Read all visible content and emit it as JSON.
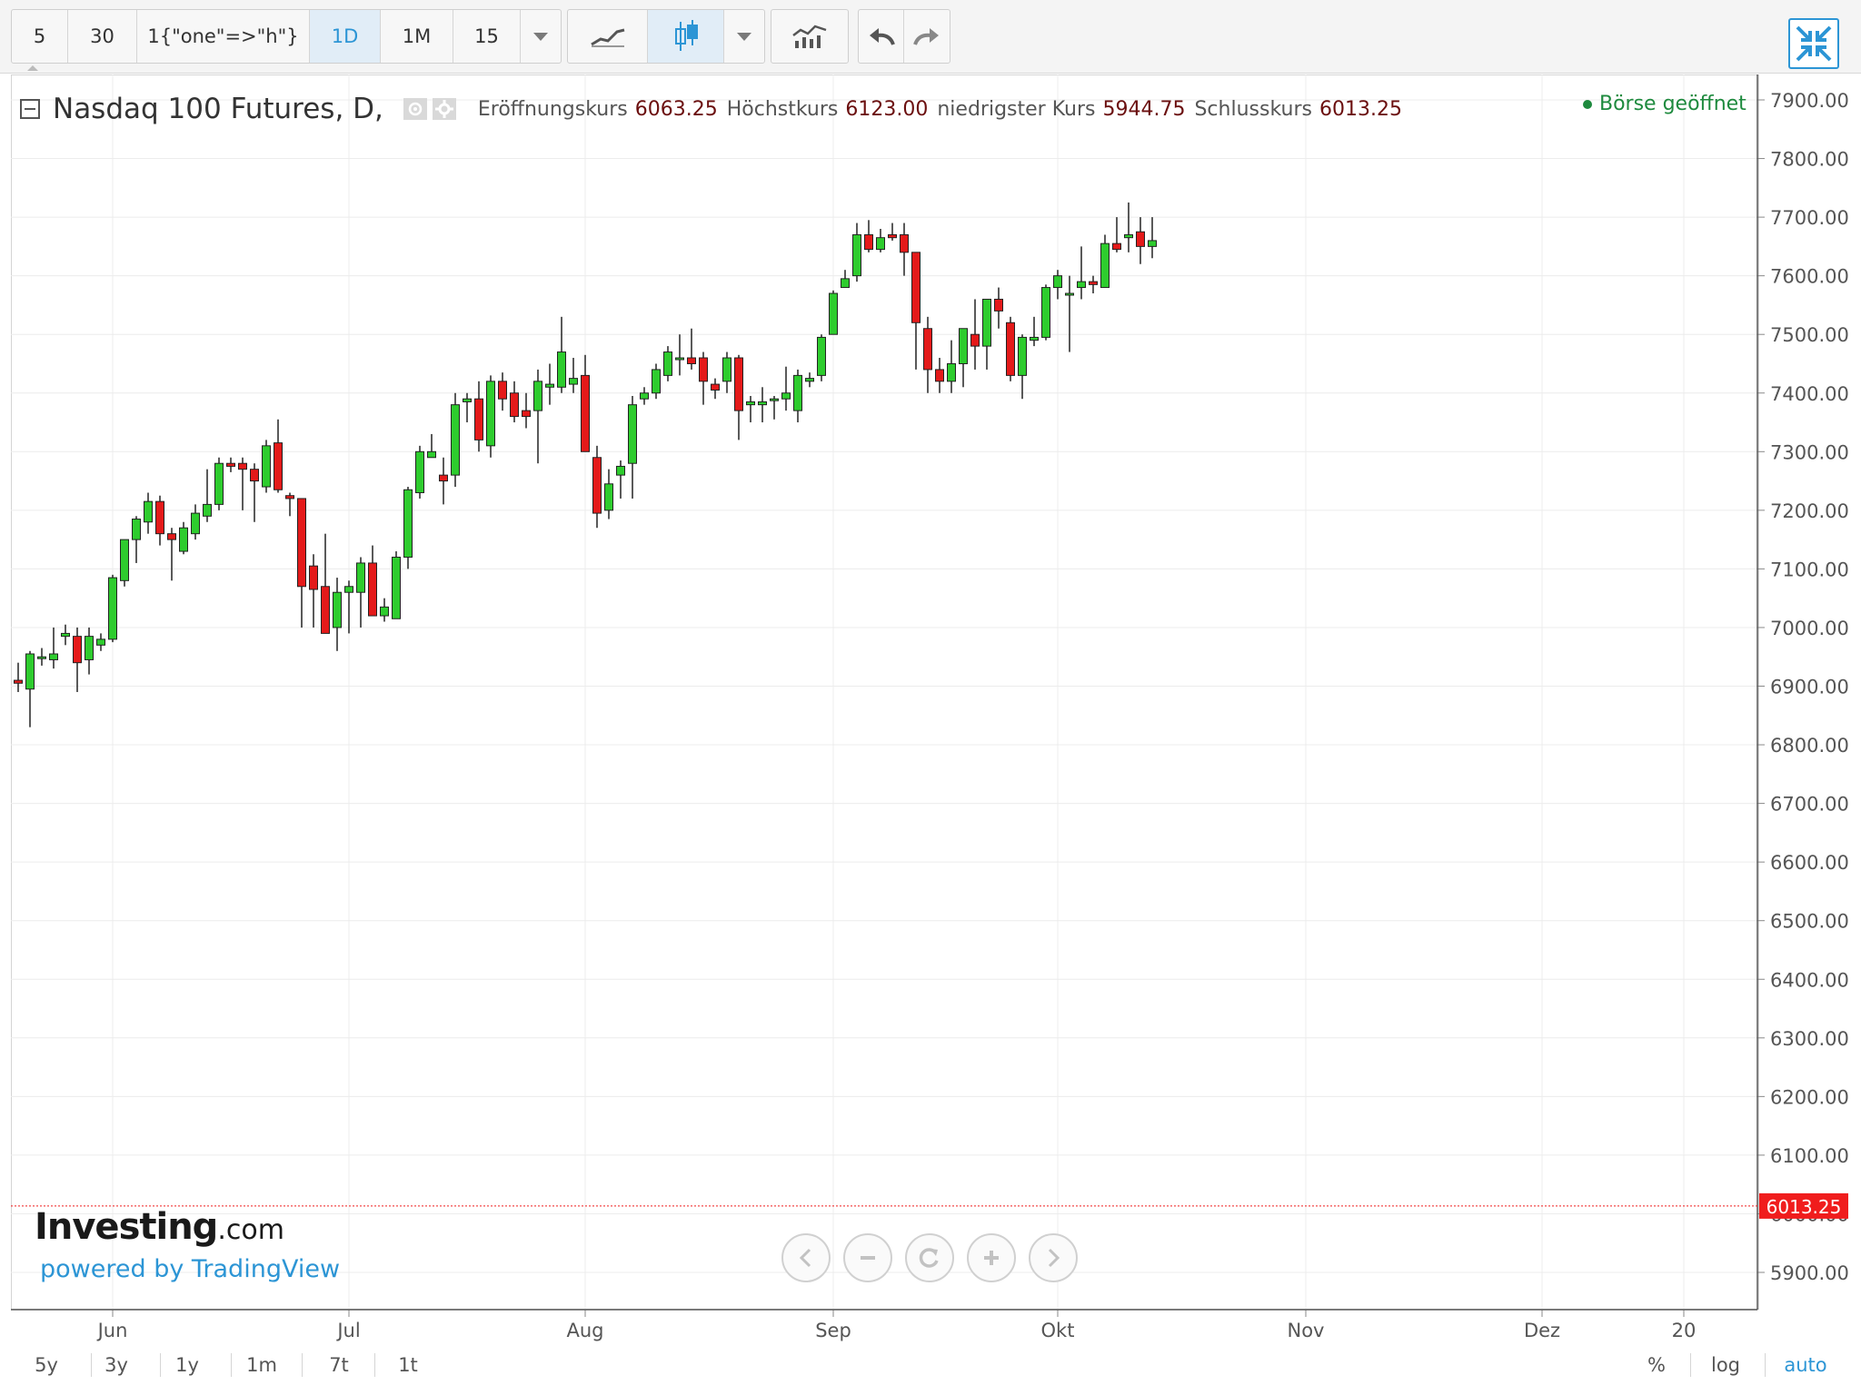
{
  "toolbar": {
    "intervals": [
      "5",
      "30",
      "1{\"one\"=>\"h\"}",
      "1D",
      "1M",
      "15"
    ],
    "active_interval": "1D"
  },
  "header": {
    "title": "Nasdaq 100 Futures, D,",
    "open_label": "Eröffnungskurs",
    "open_value": "6063.25",
    "high_label": "Höchstkurs",
    "high_value": "6123.00",
    "low_label": "niedrigster Kurs",
    "low_value": "5944.75",
    "close_label": "Schlusskurs",
    "close_value": "6013.25",
    "market_status": "Börse geöffnet"
  },
  "branding": {
    "logo_main": "Investing",
    "logo_suffix": ".com",
    "powered_by": "powered by TradingView"
  },
  "bottom_bar": {
    "ranges": [
      "5y",
      "3y",
      "1y",
      "1m",
      "7t",
      "1t"
    ],
    "percent_label": "%",
    "log_label": "log",
    "auto_label": "auto"
  },
  "colors": {
    "up": "#2ecc2e",
    "down": "#e41a1a",
    "accent": "#2c95d5",
    "open_status": "#1e8a3e",
    "price_line": "#f01d1d"
  },
  "chart_data": {
    "type": "candlestick",
    "title": "Nasdaq 100 Futures, D,",
    "ylim": [
      5850,
      7950
    ],
    "y_ticks": [
      5900,
      6000,
      6100,
      6200,
      6300,
      6400,
      6500,
      6600,
      6700,
      6800,
      6900,
      7000,
      7100,
      7200,
      7300,
      7400,
      7500,
      7600,
      7700,
      7800,
      7900
    ],
    "y_tick_labels": [
      "5900.00",
      "6000.00",
      "6100.00",
      "6200.00",
      "6300.00",
      "6400.00",
      "6500.00",
      "6600.00",
      "6700.00",
      "6800.00",
      "6900.00",
      "7000.00",
      "7100.00",
      "7200.00",
      "7300.00",
      "7400.00",
      "7500.00",
      "7600.00",
      "7700.00",
      "7800.00",
      "7900.00"
    ],
    "x_labels": [
      {
        "label": "Jun",
        "index": 8
      },
      {
        "label": "Jul",
        "index": 28
      },
      {
        "label": "Aug",
        "index": 48
      },
      {
        "label": "Sep",
        "index": 69
      },
      {
        "label": "Okt",
        "index": 88
      },
      {
        "label": "Nov",
        "index": 109
      },
      {
        "label": "Dez",
        "index": 129
      },
      {
        "label": "20",
        "index": 141
      }
    ],
    "last_price": 6013.25,
    "last_price_label": "6013.25",
    "grid": true,
    "candles": [
      {
        "o": 6910,
        "h": 6940,
        "l": 6890,
        "c": 6905
      },
      {
        "o": 6895,
        "h": 6960,
        "l": 6830,
        "c": 6955
      },
      {
        "o": 6950,
        "h": 6965,
        "l": 6935,
        "c": 6950
      },
      {
        "o": 6945,
        "h": 7000,
        "l": 6930,
        "c": 6955
      },
      {
        "o": 6985,
        "h": 7005,
        "l": 6970,
        "c": 6990
      },
      {
        "o": 6985,
        "h": 7000,
        "l": 6890,
        "c": 6940
      },
      {
        "o": 6945,
        "h": 7000,
        "l": 6920,
        "c": 6985
      },
      {
        "o": 6970,
        "h": 6990,
        "l": 6960,
        "c": 6980
      },
      {
        "o": 6980,
        "h": 7090,
        "l": 6975,
        "c": 7085
      },
      {
        "o": 7080,
        "h": 7150,
        "l": 7070,
        "c": 7150
      },
      {
        "o": 7150,
        "h": 7190,
        "l": 7110,
        "c": 7185
      },
      {
        "o": 7180,
        "h": 7230,
        "l": 7160,
        "c": 7215
      },
      {
        "o": 7215,
        "h": 7225,
        "l": 7140,
        "c": 7160
      },
      {
        "o": 7160,
        "h": 7170,
        "l": 7080,
        "c": 7150
      },
      {
        "o": 7130,
        "h": 7180,
        "l": 7125,
        "c": 7170
      },
      {
        "o": 7160,
        "h": 7210,
        "l": 7150,
        "c": 7195
      },
      {
        "o": 7190,
        "h": 7270,
        "l": 7180,
        "c": 7210
      },
      {
        "o": 7210,
        "h": 7290,
        "l": 7200,
        "c": 7280
      },
      {
        "o": 7280,
        "h": 7290,
        "l": 7265,
        "c": 7275
      },
      {
        "o": 7280,
        "h": 7290,
        "l": 7200,
        "c": 7270
      },
      {
        "o": 7270,
        "h": 7280,
        "l": 7180,
        "c": 7250
      },
      {
        "o": 7240,
        "h": 7320,
        "l": 7230,
        "c": 7310
      },
      {
        "o": 7315,
        "h": 7355,
        "l": 7230,
        "c": 7235
      },
      {
        "o": 7225,
        "h": 7230,
        "l": 7190,
        "c": 7220
      },
      {
        "o": 7220,
        "h": 7220,
        "l": 7000,
        "c": 7070
      },
      {
        "o": 7105,
        "h": 7125,
        "l": 7000,
        "c": 7065
      },
      {
        "o": 7070,
        "h": 7160,
        "l": 6990,
        "c": 6990
      },
      {
        "o": 7000,
        "h": 7085,
        "l": 6960,
        "c": 7060
      },
      {
        "o": 7060,
        "h": 7080,
        "l": 6990,
        "c": 7070
      },
      {
        "o": 7060,
        "h": 7120,
        "l": 7000,
        "c": 7110
      },
      {
        "o": 7110,
        "h": 7140,
        "l": 7020,
        "c": 7020
      },
      {
        "o": 7020,
        "h": 7050,
        "l": 7010,
        "c": 7035
      },
      {
        "o": 7015,
        "h": 7130,
        "l": 7015,
        "c": 7120
      },
      {
        "o": 7120,
        "h": 7240,
        "l": 7100,
        "c": 7235
      },
      {
        "o": 7230,
        "h": 7310,
        "l": 7220,
        "c": 7300
      },
      {
        "o": 7290,
        "h": 7330,
        "l": 7290,
        "c": 7300
      },
      {
        "o": 7260,
        "h": 7290,
        "l": 7210,
        "c": 7250
      },
      {
        "o": 7260,
        "h": 7400,
        "l": 7240,
        "c": 7380
      },
      {
        "o": 7385,
        "h": 7400,
        "l": 7350,
        "c": 7390
      },
      {
        "o": 7390,
        "h": 7420,
        "l": 7300,
        "c": 7320
      },
      {
        "o": 7310,
        "h": 7430,
        "l": 7290,
        "c": 7420
      },
      {
        "o": 7420,
        "h": 7435,
        "l": 7370,
        "c": 7390
      },
      {
        "o": 7400,
        "h": 7420,
        "l": 7350,
        "c": 7360
      },
      {
        "o": 7370,
        "h": 7400,
        "l": 7340,
        "c": 7360
      },
      {
        "o": 7370,
        "h": 7440,
        "l": 7280,
        "c": 7420
      },
      {
        "o": 7410,
        "h": 7450,
        "l": 7380,
        "c": 7415
      },
      {
        "o": 7410,
        "h": 7530,
        "l": 7400,
        "c": 7470
      },
      {
        "o": 7415,
        "h": 7460,
        "l": 7400,
        "c": 7425
      },
      {
        "o": 7430,
        "h": 7465,
        "l": 7300,
        "c": 7300
      },
      {
        "o": 7290,
        "h": 7310,
        "l": 7170,
        "c": 7195
      },
      {
        "o": 7200,
        "h": 7270,
        "l": 7185,
        "c": 7245
      },
      {
        "o": 7260,
        "h": 7285,
        "l": 7220,
        "c": 7275
      },
      {
        "o": 7280,
        "h": 7395,
        "l": 7220,
        "c": 7380
      },
      {
        "o": 7390,
        "h": 7410,
        "l": 7380,
        "c": 7400
      },
      {
        "o": 7400,
        "h": 7450,
        "l": 7390,
        "c": 7440
      },
      {
        "o": 7430,
        "h": 7480,
        "l": 7420,
        "c": 7470
      },
      {
        "o": 7460,
        "h": 7500,
        "l": 7430,
        "c": 7460
      },
      {
        "o": 7460,
        "h": 7510,
        "l": 7440,
        "c": 7450
      },
      {
        "o": 7460,
        "h": 7470,
        "l": 7380,
        "c": 7420
      },
      {
        "o": 7415,
        "h": 7425,
        "l": 7390,
        "c": 7405
      },
      {
        "o": 7420,
        "h": 7470,
        "l": 7400,
        "c": 7460
      },
      {
        "o": 7460,
        "h": 7465,
        "l": 7320,
        "c": 7370
      },
      {
        "o": 7380,
        "h": 7395,
        "l": 7350,
        "c": 7385
      },
      {
        "o": 7380,
        "h": 7410,
        "l": 7350,
        "c": 7385
      },
      {
        "o": 7390,
        "h": 7395,
        "l": 7355,
        "c": 7390
      },
      {
        "o": 7390,
        "h": 7445,
        "l": 7370,
        "c": 7400
      },
      {
        "o": 7370,
        "h": 7440,
        "l": 7350,
        "c": 7430
      },
      {
        "o": 7420,
        "h": 7435,
        "l": 7410,
        "c": 7425
      },
      {
        "o": 7430,
        "h": 7500,
        "l": 7420,
        "c": 7495
      },
      {
        "o": 7500,
        "h": 7575,
        "l": 7500,
        "c": 7570
      },
      {
        "o": 7580,
        "h": 7610,
        "l": 7580,
        "c": 7595
      },
      {
        "o": 7600,
        "h": 7690,
        "l": 7590,
        "c": 7670
      },
      {
        "o": 7670,
        "h": 7695,
        "l": 7640,
        "c": 7645
      },
      {
        "o": 7645,
        "h": 7680,
        "l": 7640,
        "c": 7665
      },
      {
        "o": 7670,
        "h": 7690,
        "l": 7660,
        "c": 7665
      },
      {
        "o": 7670,
        "h": 7690,
        "l": 7600,
        "c": 7640
      },
      {
        "o": 7640,
        "h": 7640,
        "l": 7440,
        "c": 7520
      },
      {
        "o": 7510,
        "h": 7530,
        "l": 7400,
        "c": 7440
      },
      {
        "o": 7440,
        "h": 7460,
        "l": 7400,
        "c": 7420
      },
      {
        "o": 7420,
        "h": 7490,
        "l": 7400,
        "c": 7450
      },
      {
        "o": 7450,
        "h": 7510,
        "l": 7410,
        "c": 7510
      },
      {
        "o": 7500,
        "h": 7560,
        "l": 7440,
        "c": 7480
      },
      {
        "o": 7480,
        "h": 7560,
        "l": 7440,
        "c": 7560
      },
      {
        "o": 7560,
        "h": 7580,
        "l": 7510,
        "c": 7540
      },
      {
        "o": 7520,
        "h": 7530,
        "l": 7420,
        "c": 7430
      },
      {
        "o": 7430,
        "h": 7500,
        "l": 7390,
        "c": 7495
      },
      {
        "o": 7490,
        "h": 7530,
        "l": 7480,
        "c": 7495
      },
      {
        "o": 7495,
        "h": 7585,
        "l": 7490,
        "c": 7580
      },
      {
        "o": 7580,
        "h": 7610,
        "l": 7560,
        "c": 7600
      },
      {
        "o": 7570,
        "h": 7600,
        "l": 7470,
        "c": 7570
      },
      {
        "o": 7580,
        "h": 7650,
        "l": 7560,
        "c": 7590
      },
      {
        "o": 7590,
        "h": 7600,
        "l": 7570,
        "c": 7585
      },
      {
        "o": 7580,
        "h": 7670,
        "l": 7580,
        "c": 7655
      },
      {
        "o": 7655,
        "h": 7700,
        "l": 7640,
        "c": 7645
      },
      {
        "o": 7665,
        "h": 7725,
        "l": 7640,
        "c": 7670
      },
      {
        "o": 7675,
        "h": 7700,
        "l": 7620,
        "c": 7650
      },
      {
        "o": 7650,
        "h": 7700,
        "l": 7630,
        "c": 7660
      }
    ]
  }
}
